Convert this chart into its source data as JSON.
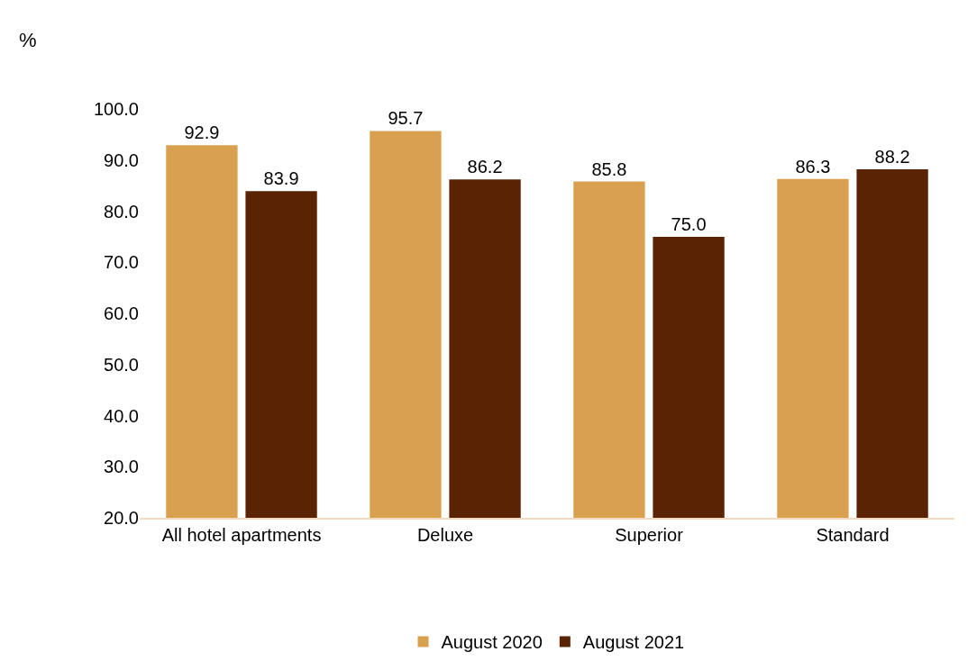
{
  "chart_data": {
    "type": "bar",
    "ylabel": "%",
    "categories": [
      "All hotel apartments",
      "Deluxe",
      "Superior",
      "Standard"
    ],
    "series": [
      {
        "name": "August 2020",
        "color": "#d9a04f",
        "values": [
          92.9,
          95.7,
          85.8,
          86.3
        ]
      },
      {
        "name": "August 2021",
        "color": "#5a2303",
        "values": [
          83.9,
          86.2,
          75.0,
          88.2
        ]
      }
    ],
    "ylim": [
      20,
      100
    ],
    "yticks": [
      {
        "value": 20,
        "label": "20.0"
      },
      {
        "value": 30,
        "label": "30.0"
      },
      {
        "value": 40,
        "label": "40.0"
      },
      {
        "value": 50,
        "label": "50.0"
      },
      {
        "value": 60,
        "label": "60.0"
      },
      {
        "value": 70,
        "label": "70.0"
      },
      {
        "value": 80,
        "label": "80.0"
      },
      {
        "value": 90,
        "label": "90.0"
      },
      {
        "value": 100,
        "label": "100.0"
      }
    ],
    "value_labels": [
      [
        "92.9",
        "95.7",
        "85.8",
        "86.3"
      ],
      [
        "83.9",
        "86.2",
        "75.0",
        "88.2"
      ]
    ],
    "legend": "bottom"
  }
}
